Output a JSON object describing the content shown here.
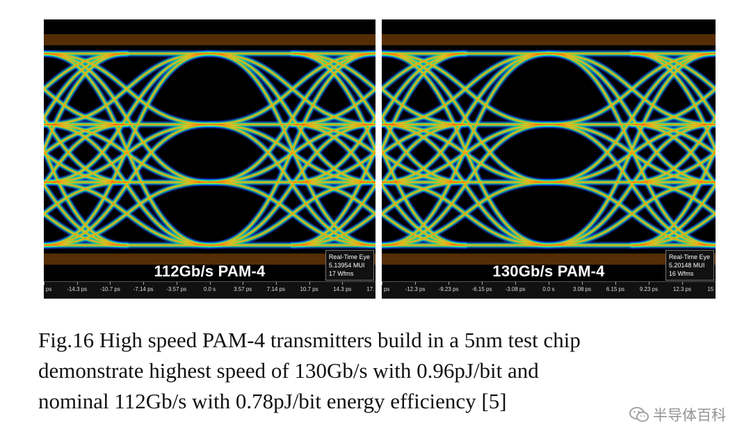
{
  "panels": [
    {
      "rate_label": "112Gb/s PAM-4",
      "info": [
        "Real-Time Eye",
        "5.13954 MUI",
        "17 Wfms"
      ],
      "ticks": [
        "ps",
        "-14.3 ps",
        "-10.7 ps",
        "-7.14 ps",
        "-3.57 ps",
        "0.0 s",
        "3.57 ps",
        "7.14 ps",
        "10.7 ps",
        "14.3 ps",
        "17."
      ]
    },
    {
      "rate_label": "130Gb/s PAM-4",
      "info": [
        "Real-Time Eye",
        "5.20148 MUI",
        "16 Wfms"
      ],
      "ticks": [
        "ps",
        "-12.3 ps",
        "-9.23 ps",
        "-6.15 ps",
        "-3.08 ps",
        "0.0 s",
        "3.08 ps",
        "6.15 ps",
        "9.23 ps",
        "12.3 ps",
        "15"
      ]
    }
  ],
  "caption": {
    "line1": "Fig.16 High speed PAM-4 transmitters build in a 5nm test chip",
    "line2": "demonstrate highest speed of 130Gb/s with 0.96pJ/bit and",
    "line3": "nominal 112Gb/s with 0.78pJ/bit energy efficiency [5]"
  },
  "watermark": {
    "text": "半导体百科",
    "icon": "wechat-icon"
  }
}
